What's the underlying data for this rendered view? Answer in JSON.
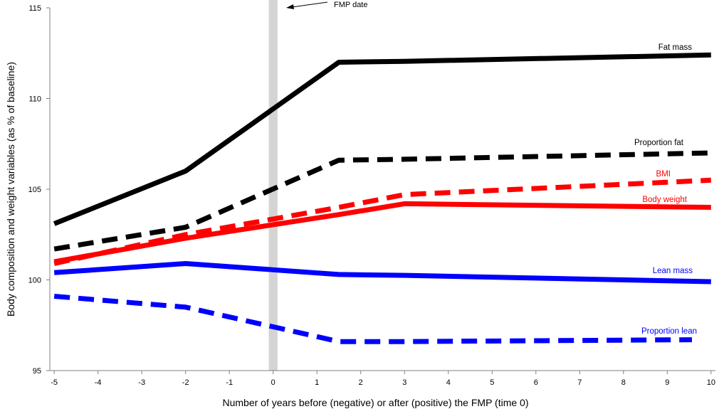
{
  "chart_data": {
    "type": "line",
    "xlabel": "Number of years before (negative) or after (positive) the FMP (time 0)",
    "ylabel": "Body composition and weight variables (as % of baseline)",
    "xlim": [
      -5.1,
      10.1
    ],
    "ylim": [
      95,
      115
    ],
    "x_ticks": [
      "-5",
      "-4",
      "-3",
      "-2",
      "-1",
      "0",
      "1",
      "2",
      "3",
      "4",
      "5",
      "6",
      "7",
      "8",
      "9",
      "10"
    ],
    "y_ticks": [
      "95",
      "100",
      "105",
      "110",
      "115"
    ],
    "grid": false,
    "legend": "inline labels at right",
    "annotations": [
      {
        "text": "FMP date",
        "x": 0,
        "band": [
          -0.1,
          0.1
        ],
        "band_color": "#d4d4d4"
      }
    ],
    "series": [
      {
        "name": "Fat mass",
        "color": "#000000",
        "dash": "solid",
        "x": [
          -5,
          -2,
          1.5,
          3,
          10
        ],
        "y": [
          103.1,
          106.0,
          112.0,
          112.05,
          112.4
        ]
      },
      {
        "name": "Proportion fat",
        "color": "#000000",
        "dash": "dashed",
        "x": [
          -5,
          -2,
          1.5,
          3,
          10
        ],
        "y": [
          101.7,
          102.9,
          106.6,
          106.65,
          107.0
        ]
      },
      {
        "name": "BMI",
        "color": "#ff0000",
        "dash": "dashed",
        "x": [
          -5,
          -2,
          1.5,
          3,
          10
        ],
        "y": [
          100.9,
          102.5,
          104.0,
          104.7,
          105.5
        ]
      },
      {
        "name": "Body weight",
        "color": "#ff0000",
        "dash": "solid",
        "x": [
          -5,
          -2,
          1.5,
          3,
          10
        ],
        "y": [
          101.0,
          102.3,
          103.6,
          104.2,
          104.0
        ]
      },
      {
        "name": "Lean mass",
        "color": "#0000ff",
        "dash": "solid",
        "x": [
          -5,
          -2,
          1.5,
          3,
          10
        ],
        "y": [
          100.4,
          100.9,
          100.3,
          100.25,
          99.9
        ]
      },
      {
        "name": "Proportion lean",
        "color": "#0000ff",
        "dash": "dashed",
        "x": [
          -5,
          -2,
          1.5,
          3,
          10
        ],
        "y": [
          99.1,
          98.5,
          96.6,
          96.6,
          96.7
        ]
      }
    ]
  }
}
